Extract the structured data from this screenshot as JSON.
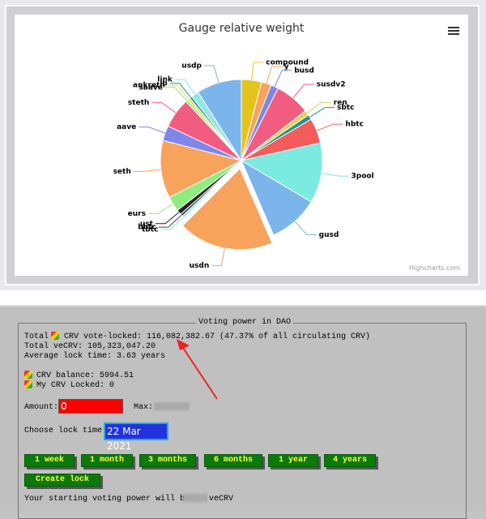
{
  "chart_data": {
    "type": "pie",
    "title": "Gauge relative weight",
    "categories": [
      "compound",
      "y",
      "busd",
      "susdv2",
      "ren",
      "sbtc",
      "hbtc",
      "3pool",
      "gusd",
      "usdn",
      "tbtc",
      "bbtc",
      "ust",
      "eurs",
      "seth",
      "aave",
      "steth",
      "saave",
      "ankreth",
      "ib",
      "link",
      "usdp"
    ],
    "values": [
      4,
      2,
      1.5,
      7,
      1,
      1,
      5,
      12,
      10,
      19,
      0.5,
      0.5,
      1,
      3,
      11.5,
      3,
      6,
      0.5,
      0.5,
      0.5,
      1.5,
      9
    ],
    "colors": [
      "#e4c41c",
      "#f7a35c",
      "#8085e9",
      "#f15c80",
      "#e4d354",
      "#2b908f",
      "#f45b5b",
      "#7beae0",
      "#7cb5ec",
      "#f7a35c",
      "#91e8e1",
      "#434348",
      "#222222",
      "#90ed7d",
      "#f7a35c",
      "#8085e9",
      "#f15c80",
      "#90ed7d",
      "#e4d354",
      "#2b908f",
      "#91e8e1",
      "#7cb5ec"
    ],
    "sliced": "usdn",
    "credits": "Highcharts.com"
  },
  "panel": {
    "legend": "Voting power in DAO",
    "total_prefix": "Total",
    "vote_locked": "CRV vote-locked: 116,082,382.67 (47.37% of all circulating CRV)",
    "total_vecrv": "Total veCRV: 105,323,047.20",
    "avg_lock": "Average lock time: 3.63 years",
    "balance": "CRV balance: 5994.51",
    "my_locked": "My CRV Locked: 0",
    "amount_label": "Amount:",
    "amount_value": "0",
    "max_label": "Max:",
    "lock_time_label": "Choose lock time:",
    "lock_time_value": "22 Mar 2021",
    "buttons": [
      "1 week",
      "1 month",
      "3 months",
      "6 months",
      "1 year",
      "4 years"
    ],
    "create_lock": "Create lock",
    "starting_power_prefix": "Your starting voting power will be:",
    "starting_power_unit": "veCRV"
  }
}
